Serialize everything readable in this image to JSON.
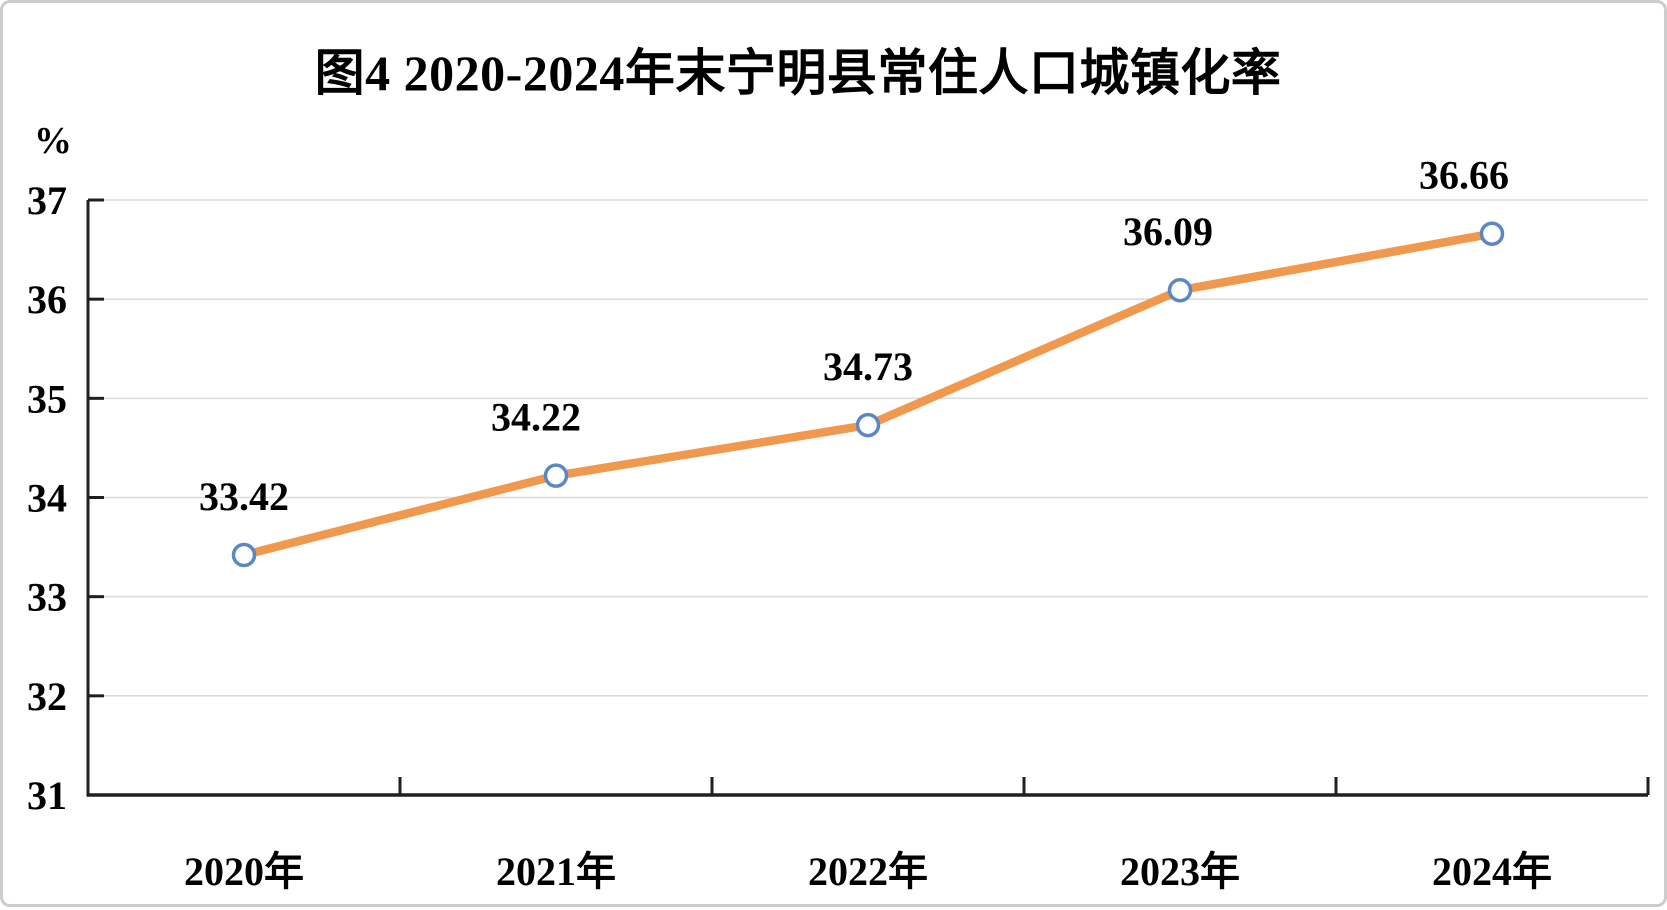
{
  "frame": {
    "background": "#FFFFFF",
    "border_color": "#CCCCCC"
  },
  "chart_data": {
    "type": "line",
    "title": "图4 2020-2024年末宁明县常住人口城镇化率",
    "ylabel": "%",
    "xlabel": "",
    "categories": [
      "2020年",
      "2021年",
      "2022年",
      "2023年",
      "2024年"
    ],
    "values": [
      33.42,
      34.22,
      34.73,
      36.09,
      36.66
    ],
    "data_labels": [
      "33.42",
      "34.22",
      "34.73",
      "36.09",
      "36.66"
    ],
    "ylim": [
      31,
      37
    ],
    "yticks": [
      31,
      32,
      33,
      34,
      35,
      36,
      37
    ],
    "ytick_labels": [
      "31",
      "32",
      "33",
      "34",
      "35",
      "36",
      "37"
    ],
    "grid": true,
    "legend": "none",
    "colors": {
      "line": "#F0994E",
      "marker_fill": "#FFFFFF",
      "marker_stroke": "#5B87C5",
      "gridline": "#DCDCDC",
      "axis": "#1F1F1F",
      "text": "#000000"
    }
  }
}
